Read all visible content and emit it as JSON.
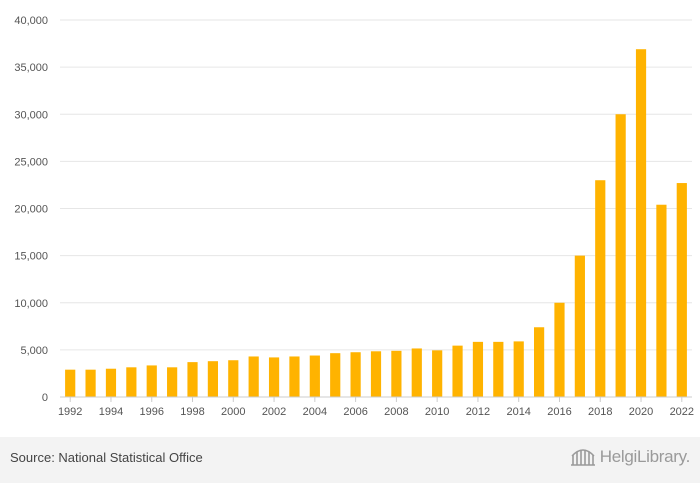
{
  "source_text": "Source: National Statistical Office",
  "logo": {
    "brand": "HelgiLibrary.",
    "icon": "bridge-logo-icon"
  },
  "colors": {
    "bar": "#FFB300",
    "grid": "#e6e6e6",
    "axis": "#cccccc"
  },
  "chart_data": {
    "type": "bar",
    "title": "",
    "xlabel": "",
    "ylabel": "",
    "categories": [
      "1992",
      "1993",
      "1994",
      "1995",
      "1996",
      "1997",
      "1998",
      "1999",
      "2000",
      "2001",
      "2002",
      "2003",
      "2004",
      "2005",
      "2006",
      "2007",
      "2008",
      "2009",
      "2010",
      "2011",
      "2012",
      "2013",
      "2014",
      "2015",
      "2016",
      "2017",
      "2018",
      "2019",
      "2020",
      "2021",
      "2022"
    ],
    "values": [
      2900,
      2900,
      3000,
      3150,
      3350,
      3150,
      3700,
      3800,
      3900,
      4300,
      4200,
      4300,
      4400,
      4650,
      4750,
      4850,
      4900,
      5150,
      4950,
      5450,
      5850,
      5850,
      5900,
      7400,
      10000,
      15000,
      23000,
      30000,
      36900,
      20400,
      22700
    ],
    "ylim": [
      0,
      40000
    ],
    "yticks": [
      0,
      5000,
      10000,
      15000,
      20000,
      25000,
      30000,
      35000,
      40000
    ],
    "ytick_labels": [
      "0",
      "5,000",
      "10,000",
      "15,000",
      "20,000",
      "25,000",
      "30,000",
      "35,000",
      "40,000"
    ],
    "xtick_labels": [
      "1992",
      "1994",
      "1996",
      "1998",
      "2000",
      "2002",
      "2004",
      "2006",
      "2008",
      "2010",
      "2012",
      "2014",
      "2016",
      "2018",
      "2020",
      "2022"
    ],
    "grid": true,
    "legend": "none"
  }
}
